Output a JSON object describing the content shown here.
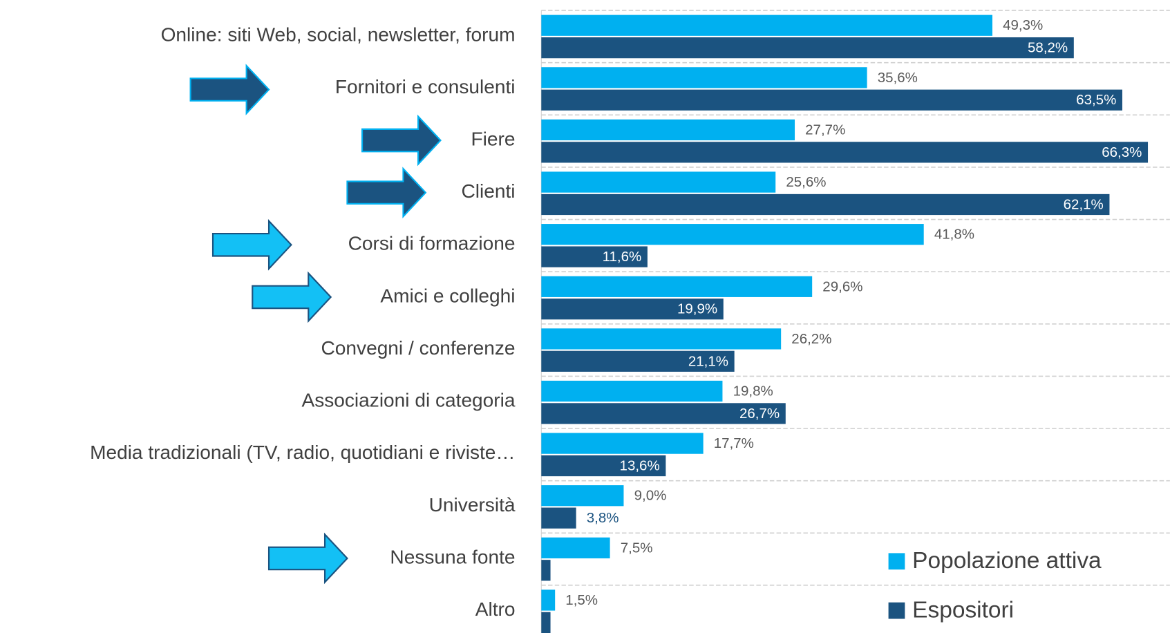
{
  "chart_data": {
    "type": "bar",
    "orientation": "horizontal",
    "categories": [
      "Online: siti Web, social, newsletter, forum",
      "Fornitori e consulenti",
      "Fiere",
      "Clienti",
      "Corsi di formazione",
      "Amici e colleghi",
      "Convegni / conferenze",
      "Associazioni di categoria",
      "Media tradizionali (TV, radio, quotidiani e riviste…",
      "Università",
      "Nessuna fonte",
      "Altro"
    ],
    "series": [
      {
        "name": "Popolazione attiva",
        "color": "#00b0f0",
        "values": [
          49.3,
          35.6,
          27.7,
          25.6,
          41.8,
          29.6,
          26.2,
          19.8,
          17.7,
          9.0,
          7.5,
          1.5
        ],
        "value_labels": [
          "49,3%",
          "35,6%",
          "27,7%",
          "25,6%",
          "41,8%",
          "29,6%",
          "26,2%",
          "19,8%",
          "17,7%",
          "9,0%",
          "7,5%",
          "1,5%"
        ]
      },
      {
        "name": "Espositori",
        "color": "#1b5380",
        "values": [
          58.2,
          63.5,
          66.3,
          62.1,
          11.6,
          19.9,
          21.1,
          26.7,
          13.6,
          3.8,
          1.0,
          1.0
        ],
        "value_labels": [
          "58,2%",
          "63,5%",
          "66,3%",
          "62,1%",
          "11,6%",
          "19,9%",
          "21,1%",
          "26,7%",
          "13,6%",
          "3,8%",
          null,
          null
        ]
      }
    ],
    "xlim": [
      0,
      68.7
    ],
    "legend": "bottom-right"
  }
}
